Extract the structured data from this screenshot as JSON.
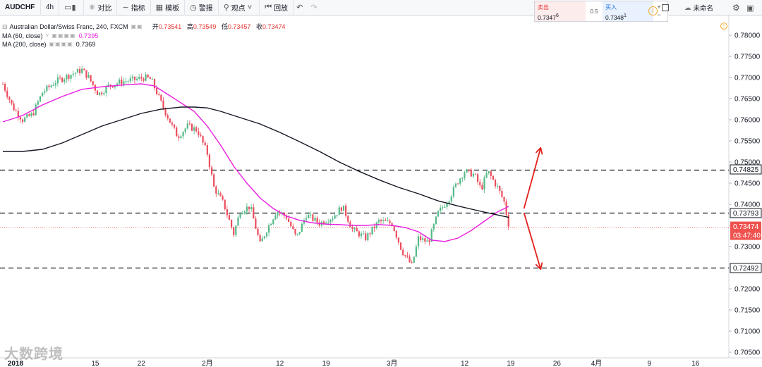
{
  "toolbar": {
    "symbol": "AUDCHF",
    "interval": "4h",
    "compare": "对比",
    "indicators": "指标",
    "templates": "模板",
    "alert": "警报",
    "ideas": "观点",
    "replay": "回放",
    "unnamed": "未命名"
  },
  "quote": {
    "sell_label": "卖出",
    "sell_price": "0.7347",
    "sell_sup": "6",
    "spread": "0.5",
    "buy_label": "买入",
    "buy_price": "0.7348",
    "buy_sup": "1"
  },
  "legend": {
    "title": "Australian Dollar/Swiss Franc, 240, FXCM",
    "open_label": "开",
    "open": "0.73541",
    "high_label": "高",
    "high": "0.73549",
    "low_label": "低",
    "low": "0.73457",
    "close_label": "收",
    "close": "0.73474",
    "ma60_label": "MA (60, close)",
    "ma60_value": "0.7395",
    "ma200_label": "MA (200, close)",
    "ma200_value": "0.7369"
  },
  "watermark": "大数跨境",
  "chart_data": {
    "type": "candlestick",
    "symbol": "AUDCHF",
    "timeframe": "240",
    "ylim": [
      0.7035,
      0.7825
    ],
    "y_ticks": [
      "0.78000",
      "0.77500",
      "0.77000",
      "0.76500",
      "0.76000",
      "0.75500",
      "0.75000",
      "0.74500",
      "0.74000",
      "0.73500",
      "0.73000",
      "0.72500",
      "0.72000",
      "0.71500",
      "0.71000",
      "0.70500"
    ],
    "x_ticks": [
      {
        "label": "2018",
        "day": 0,
        "bold": true
      },
      {
        "label": "15",
        "day": 14
      },
      {
        "label": "22",
        "day": 21
      },
      {
        "label": "2月",
        "day": 31
      },
      {
        "label": "12",
        "day": 42
      },
      {
        "label": "19",
        "day": 49
      },
      {
        "label": "3月",
        "day": 59
      },
      {
        "label": "12",
        "day": 70
      },
      {
        "label": "19",
        "day": 77
      },
      {
        "label": "26",
        "day": 84
      },
      {
        "label": "4月",
        "day": 90
      },
      {
        "label": "9",
        "day": 98
      },
      {
        "label": "16",
        "day": 105
      }
    ],
    "price_path": [
      [
        0,
        0.7685
      ],
      [
        1.5,
        0.763
      ],
      [
        3,
        0.76
      ],
      [
        4.5,
        0.7612
      ],
      [
        6,
        0.7665
      ],
      [
        8,
        0.769
      ],
      [
        10,
        0.7705
      ],
      [
        12,
        0.7718
      ],
      [
        13,
        0.77
      ],
      [
        14.5,
        0.766
      ],
      [
        16,
        0.768
      ],
      [
        18,
        0.769
      ],
      [
        20,
        0.7695
      ],
      [
        21.5,
        0.77
      ],
      [
        22.5,
        0.7695
      ],
      [
        24,
        0.764
      ],
      [
        25.5,
        0.759
      ],
      [
        26.5,
        0.756
      ],
      [
        28,
        0.7585
      ],
      [
        29.5,
        0.7575
      ],
      [
        31,
        0.752
      ],
      [
        32,
        0.744
      ],
      [
        33.5,
        0.74
      ],
      [
        35,
        0.733
      ],
      [
        36,
        0.7385
      ],
      [
        37.5,
        0.7395
      ],
      [
        39,
        0.7305
      ],
      [
        40,
        0.734
      ],
      [
        41.5,
        0.7385
      ],
      [
        43,
        0.737
      ],
      [
        44.5,
        0.732
      ],
      [
        46,
        0.7375
      ],
      [
        48,
        0.7355
      ],
      [
        50,
        0.737
      ],
      [
        51.5,
        0.7395
      ],
      [
        53,
        0.734
      ],
      [
        55,
        0.732
      ],
      [
        57,
        0.736
      ],
      [
        59,
        0.7355
      ],
      [
        60.5,
        0.729
      ],
      [
        62,
        0.7255
      ],
      [
        63,
        0.732
      ],
      [
        64.5,
        0.731
      ],
      [
        66,
        0.738
      ],
      [
        67.5,
        0.741
      ],
      [
        69,
        0.7455
      ],
      [
        70,
        0.7478
      ],
      [
        71.5,
        0.747
      ],
      [
        72.5,
        0.7435
      ],
      [
        73.5,
        0.7478
      ],
      [
        75,
        0.744
      ],
      [
        76,
        0.7405
      ],
      [
        76.7,
        0.7347
      ]
    ],
    "series": [
      {
        "name": "MA (60, close)",
        "color": "#e91ee0",
        "points": [
          [
            0,
            0.7595
          ],
          [
            3,
            0.761
          ],
          [
            6,
            0.7635
          ],
          [
            9,
            0.7655
          ],
          [
            12,
            0.7672
          ],
          [
            15,
            0.7678
          ],
          [
            18,
            0.7682
          ],
          [
            21,
            0.7685
          ],
          [
            23,
            0.768
          ],
          [
            25,
            0.766
          ],
          [
            27,
            0.764
          ],
          [
            29,
            0.762
          ],
          [
            31,
            0.7585
          ],
          [
            33,
            0.754
          ],
          [
            35,
            0.749
          ],
          [
            37,
            0.745
          ],
          [
            39,
            0.7415
          ],
          [
            41,
            0.739
          ],
          [
            43,
            0.7372
          ],
          [
            45,
            0.7362
          ],
          [
            47,
            0.7356
          ],
          [
            49,
            0.7353
          ],
          [
            51,
            0.7352
          ],
          [
            53,
            0.735
          ],
          [
            55,
            0.735
          ],
          [
            57,
            0.7352
          ],
          [
            59,
            0.735
          ],
          [
            61,
            0.7345
          ],
          [
            63,
            0.7335
          ],
          [
            65,
            0.7315
          ],
          [
            67,
            0.7312
          ],
          [
            69,
            0.732
          ],
          [
            71,
            0.7338
          ],
          [
            73,
            0.736
          ],
          [
            75,
            0.7382
          ],
          [
            76.7,
            0.7395
          ]
        ]
      },
      {
        "name": "MA (200, close)",
        "color": "#131722",
        "points": [
          [
            0,
            0.7525
          ],
          [
            3,
            0.7525
          ],
          [
            6,
            0.753
          ],
          [
            9,
            0.7545
          ],
          [
            12,
            0.7565
          ],
          [
            15,
            0.7585
          ],
          [
            18,
            0.76
          ],
          [
            21,
            0.7615
          ],
          [
            24,
            0.7625
          ],
          [
            27,
            0.763
          ],
          [
            29,
            0.763
          ],
          [
            31,
            0.7628
          ],
          [
            33,
            0.762
          ],
          [
            36,
            0.7605
          ],
          [
            39,
            0.759
          ],
          [
            42,
            0.757
          ],
          [
            45,
            0.7548
          ],
          [
            48,
            0.7525
          ],
          [
            51,
            0.75
          ],
          [
            54,
            0.7478
          ],
          [
            57,
            0.7458
          ],
          [
            60,
            0.744
          ],
          [
            63,
            0.7425
          ],
          [
            66,
            0.7408
          ],
          [
            69,
            0.7396
          ],
          [
            72,
            0.7385
          ],
          [
            74,
            0.7378
          ],
          [
            76.7,
            0.7369
          ]
        ]
      }
    ],
    "levels": [
      {
        "value": 0.74825,
        "label": "0.74825"
      },
      {
        "value": 0.73793,
        "label": "0.73793"
      },
      {
        "value": 0.72492,
        "label": "0.72492"
      }
    ],
    "last_price": {
      "value": 0.73474,
      "label": "0.73474",
      "countdown": "03:47:40",
      "color": "#ef5350"
    },
    "arrows": [
      {
        "from": [
          79,
          0.739
        ],
        "to": [
          81.5,
          0.7532
        ],
        "color": "#e0201b"
      },
      {
        "from": [
          79,
          0.738
        ],
        "to": [
          81.5,
          0.7248
        ],
        "color": "#e0201b"
      }
    ]
  }
}
